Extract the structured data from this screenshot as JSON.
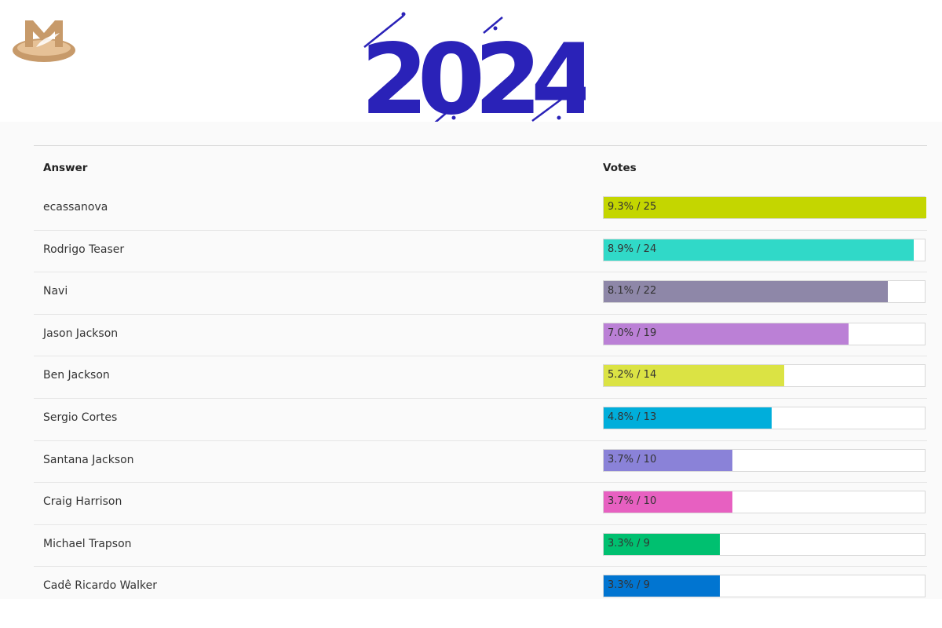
{
  "banner": {
    "year_text": "2024",
    "color": "#2a22b8"
  },
  "logo": {
    "color": "#c79a6a"
  },
  "table": {
    "header_answer": "Answer",
    "header_votes": "Votes"
  },
  "chart_data": {
    "type": "bar",
    "orientation": "horizontal",
    "columns": [
      "Answer",
      "Votes"
    ],
    "categories": [
      "ecassanova",
      "Rodrigo Teaser",
      "Navi",
      "Jason Jackson",
      "Ben Jackson",
      "Sergio Cortes",
      "Santana Jackson",
      "Craig Harrison",
      "Michael Trapson",
      "Cadê Ricardo Walker"
    ],
    "percent": [
      9.3,
      8.9,
      8.1,
      7.0,
      5.2,
      4.8,
      3.7,
      3.7,
      3.3,
      3.3
    ],
    "votes": [
      25,
      24,
      22,
      19,
      14,
      13,
      10,
      10,
      9,
      9
    ],
    "labels": [
      "9.3% / 25",
      "8.9% / 24",
      "8.1% / 22",
      "7.0% / 19",
      "5.2% / 14",
      "4.8% / 13",
      "3.7% / 10",
      "3.7% / 10",
      "3.3% / 9",
      "3.3% / 9"
    ],
    "colors": [
      "#c4d600",
      "#30d9c8",
      "#8e87a8",
      "#bb80d6",
      "#dbe344",
      "#00aedb",
      "#8a82d8",
      "#e760c1",
      "#00c070",
      "#0175d1"
    ],
    "max_votes": 25
  }
}
